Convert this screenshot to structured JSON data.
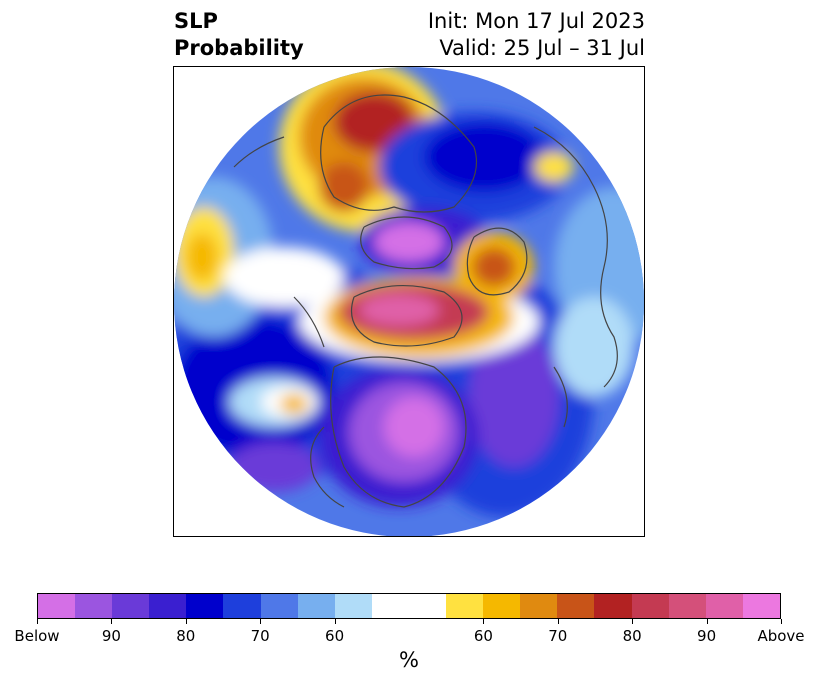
{
  "header": {
    "title_line1": "SLP",
    "title_line2": "Probability",
    "init_label": "Init: Mon 17 Jul 2023",
    "valid_label": "Valid: 25 Jul – 31 Jul"
  },
  "colorbar": {
    "unit": "%",
    "colors": [
      "#d46fe6",
      "#9b55e0",
      "#6a3ad8",
      "#3a1fd0",
      "#0000cc",
      "#1e3fdc",
      "#4f78e8",
      "#77afef",
      "#b0dcf8",
      "#ffffff",
      "#ffffff",
      "#ffe140",
      "#f5b800",
      "#e08a10",
      "#c85418",
      "#b22222",
      "#c43a52",
      "#d4507a",
      "#e060a8",
      "#ec78e0"
    ],
    "ticks": [
      {
        "label": "Below",
        "index": 0
      },
      {
        "label": "90",
        "index": 2
      },
      {
        "label": "80",
        "index": 4
      },
      {
        "label": "70",
        "index": 6
      },
      {
        "label": "60",
        "index": 8
      },
      {
        "label": "60",
        "index": 12
      },
      {
        "label": "70",
        "index": 14
      },
      {
        "label": "80",
        "index": 16
      },
      {
        "label": "90",
        "index": 18
      },
      {
        "label": "Above",
        "index": 20
      }
    ]
  }
}
